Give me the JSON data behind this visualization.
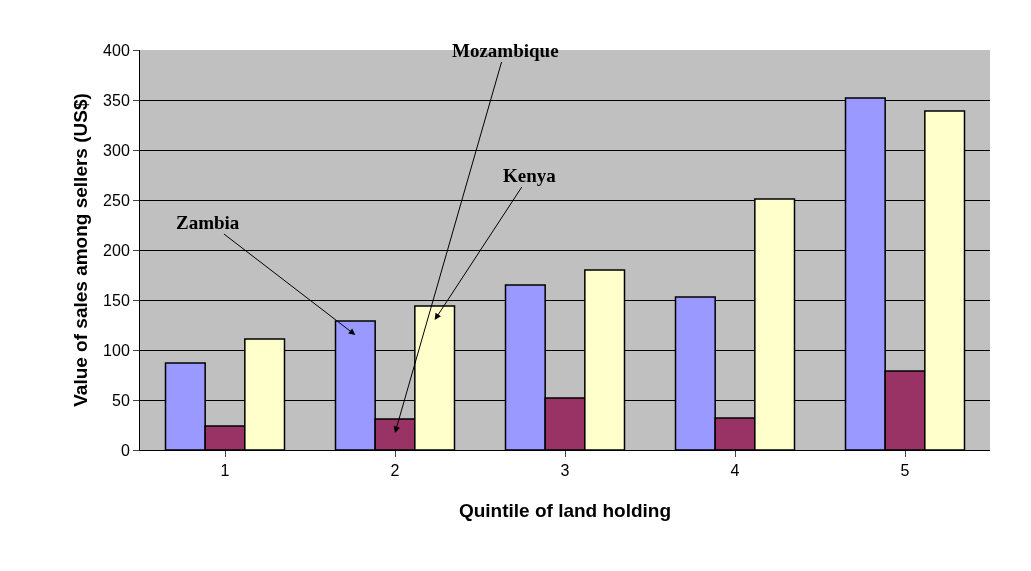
{
  "chart_data": {
    "type": "bar",
    "xlabel": "Quintile of land holding",
    "ylabel": "Value of sales among sellers (US$)",
    "categories": [
      "1",
      "2",
      "3",
      "4",
      "5"
    ],
    "series": [
      {
        "name": "Zambia",
        "color": "#9999ff",
        "values": [
          87,
          129,
          165,
          153,
          352
        ]
      },
      {
        "name": "Mozambique",
        "color": "#993366",
        "values": [
          24,
          31,
          52,
          32,
          79
        ]
      },
      {
        "name": "Kenya",
        "color": "#ffffcc",
        "values": [
          111,
          144,
          180,
          251,
          339
        ]
      }
    ],
    "ylim": [
      0,
      400
    ],
    "yticks": [
      0,
      50,
      100,
      150,
      200,
      250,
      300,
      350,
      400
    ],
    "grid": "y"
  }
}
